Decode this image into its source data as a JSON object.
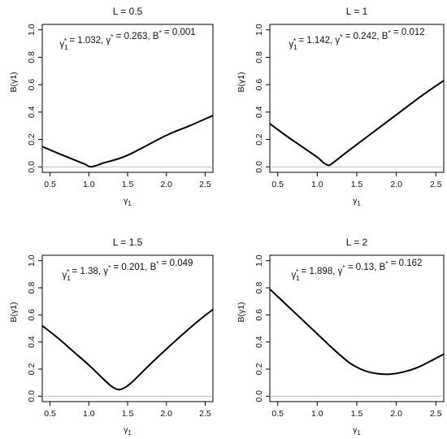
{
  "chart_data": [
    {
      "type": "line",
      "title": "L = 0.5",
      "xlabel": "γ1",
      "ylabel": "B(γ1)",
      "annotation": "γ1* = 1.032, γ* = 0.263, B* = 0.001",
      "xlim": [
        0.4,
        2.6
      ],
      "ylim": [
        0,
        1.0
      ],
      "xticks": [
        "0.5",
        "1.0",
        "1.5",
        "2.0",
        "2.5"
      ],
      "yticks": [
        "0.0",
        "0.2",
        "0.4",
        "0.6",
        "0.8",
        "1.0"
      ],
      "reference_line_y": 0,
      "series": [
        {
          "x": [
            0.4,
            0.6,
            0.8,
            0.95,
            1.032,
            1.2,
            1.5,
            2.0,
            2.3,
            2.6
          ],
          "y": [
            0.148,
            0.1,
            0.054,
            0.02,
            0.001,
            0.03,
            0.085,
            0.23,
            0.3,
            0.375
          ]
        }
      ]
    },
    {
      "type": "line",
      "title": "L = 1",
      "xlabel": "γ1",
      "ylabel": "B(γ1)",
      "annotation": "γ1* = 1.142, γ* = 0.242, B* = 0.012",
      "xlim": [
        0.4,
        2.6
      ],
      "ylim": [
        0,
        1.0
      ],
      "xticks": [
        "0.5",
        "1.0",
        "1.5",
        "2.0",
        "2.5"
      ],
      "yticks": [
        "0.0",
        "0.2",
        "0.4",
        "0.6",
        "0.8",
        "1.0"
      ],
      "reference_line_y": 0,
      "series": [
        {
          "x": [
            0.4,
            0.6,
            0.8,
            1.0,
            1.08,
            1.142,
            1.2,
            1.4,
            1.7,
            2.0,
            2.3,
            2.6
          ],
          "y": [
            0.315,
            0.23,
            0.15,
            0.07,
            0.03,
            0.012,
            0.03,
            0.12,
            0.25,
            0.38,
            0.51,
            0.63
          ]
        }
      ]
    },
    {
      "type": "line",
      "title": "L = 1.5",
      "xlabel": "γ1",
      "ylabel": "B(γ1)",
      "annotation": "γ1* = 1.38, γ* = 0.201, B* = 0.049",
      "xlim": [
        0.4,
        2.6
      ],
      "ylim": [
        0,
        1.0
      ],
      "xticks": [
        "0.5",
        "1.0",
        "1.5",
        "2.0",
        "2.5"
      ],
      "yticks": [
        "0.0",
        "0.2",
        "0.4",
        "0.6",
        "0.8",
        "1.0"
      ],
      "reference_line_y": 0,
      "series": [
        {
          "x": [
            0.4,
            0.6,
            0.8,
            1.0,
            1.2,
            1.3,
            1.38,
            1.45,
            1.55,
            1.8,
            2.1,
            2.4,
            2.6
          ],
          "y": [
            0.52,
            0.43,
            0.33,
            0.23,
            0.12,
            0.07,
            0.049,
            0.06,
            0.1,
            0.24,
            0.4,
            0.55,
            0.64
          ]
        }
      ]
    },
    {
      "type": "line",
      "title": "L = 2",
      "xlabel": "γ1",
      "ylabel": "B(γ1)",
      "annotation": "γ1* = 1.898, γ* = 0.13, B* = 0.162",
      "xlim": [
        0.4,
        2.6
      ],
      "ylim": [
        0,
        1.0
      ],
      "xticks": [
        "0.5",
        "1.0",
        "1.5",
        "2.0",
        "2.5"
      ],
      "yticks": [
        "0.0",
        "0.2",
        "0.4",
        "0.6",
        "0.8",
        "1.0"
      ],
      "reference_line_y": 0,
      "series": [
        {
          "x": [
            0.4,
            0.6,
            0.8,
            1.0,
            1.2,
            1.4,
            1.55,
            1.7,
            1.898,
            2.1,
            2.3,
            2.6
          ],
          "y": [
            0.79,
            0.68,
            0.57,
            0.46,
            0.35,
            0.25,
            0.2,
            0.172,
            0.162,
            0.18,
            0.22,
            0.31
          ]
        }
      ]
    }
  ]
}
